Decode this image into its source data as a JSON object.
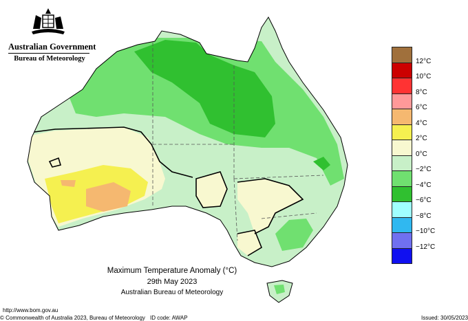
{
  "header": {
    "government": "Australian Government",
    "bureau": "Bureau of Meteorology"
  },
  "title": {
    "line1": "Maximum Temperature Anomaly (°C)",
    "line2": "29th May 2023",
    "line3": "Australian Bureau of Meteorology"
  },
  "legend": {
    "labels": [
      "12°C",
      "10°C",
      "8°C",
      "6°C",
      "4°C",
      "2°C",
      "0°C",
      "−2°C",
      "−4°C",
      "−6°C",
      "−8°C",
      "−10°C",
      "−12°C"
    ],
    "colors": [
      "#a0703c",
      "#cc0000",
      "#ff3333",
      "#ff9999",
      "#f5b870",
      "#f5f050",
      "#f8f8d0",
      "#c8f0c8",
      "#70e070",
      "#30c030",
      "#a0ffff",
      "#30b8f0",
      "#7070f0",
      "#1010f0"
    ]
  },
  "map_colors": {
    "ocean": "#ffffff",
    "coast": "#000000",
    "pale_yellow": "#f8f8d0",
    "yellow": "#f5f050",
    "orange": "#f5b870",
    "light_green": "#c8f0c8",
    "green": "#70e070",
    "dark_green": "#30c030"
  },
  "footer": {
    "url": "http://www.bom.gov.au",
    "copyright": "© Commonwealth of Australia 2023, Bureau of Meteorology",
    "id_code": "ID code: AWAP",
    "issued": "Issued: 30/05/2023"
  }
}
